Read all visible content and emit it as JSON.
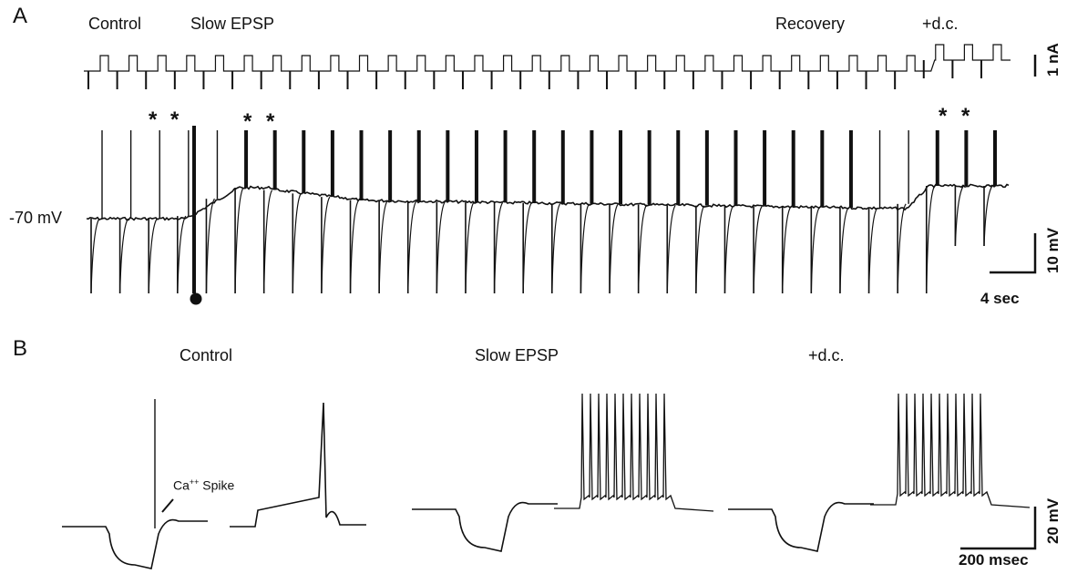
{
  "panels": {
    "a": "A",
    "b": "B"
  },
  "panel_a": {
    "conditions": [
      "Control",
      "Slow EPSP",
      "Recovery",
      "+d.c."
    ],
    "baseline_label": "-70 mV",
    "current_scale": "1 nA",
    "voltage_scale": "10 mV",
    "time_scale": "4 sec",
    "asterisk": "*"
  },
  "panel_b": {
    "conditions": [
      "Control",
      "Slow EPSP",
      "+d.c."
    ],
    "annotation": {
      "text": "Ca",
      "superscript": "++",
      "rest": " Spike"
    },
    "voltage_scale": "20 mV",
    "time_scale": "200 msec"
  },
  "chart_data": {
    "type": "line",
    "title": "",
    "panels": [
      {
        "panel": "A",
        "traces": [
          "current injection pulses",
          "membrane potential"
        ],
        "baseline_mV": -70,
        "scale_bars": {
          "current_nA": 1,
          "voltage_mV": 10,
          "time_s": 4
        },
        "pulse_count": 32,
        "epochs": [
          "Control",
          "Slow EPSP",
          "Recovery",
          "+d.c."
        ]
      },
      {
        "panel": "B",
        "epochs": [
          "Control",
          "Slow EPSP",
          "+d.c."
        ],
        "depolarizing_step_spikes": {
          "Control": 1,
          "Slow EPSP": 11,
          "+d.c.": 11
        },
        "annotation": "Ca++ Spike",
        "scale_bars": {
          "voltage_mV": 20,
          "time_ms": 200
        }
      }
    ]
  }
}
